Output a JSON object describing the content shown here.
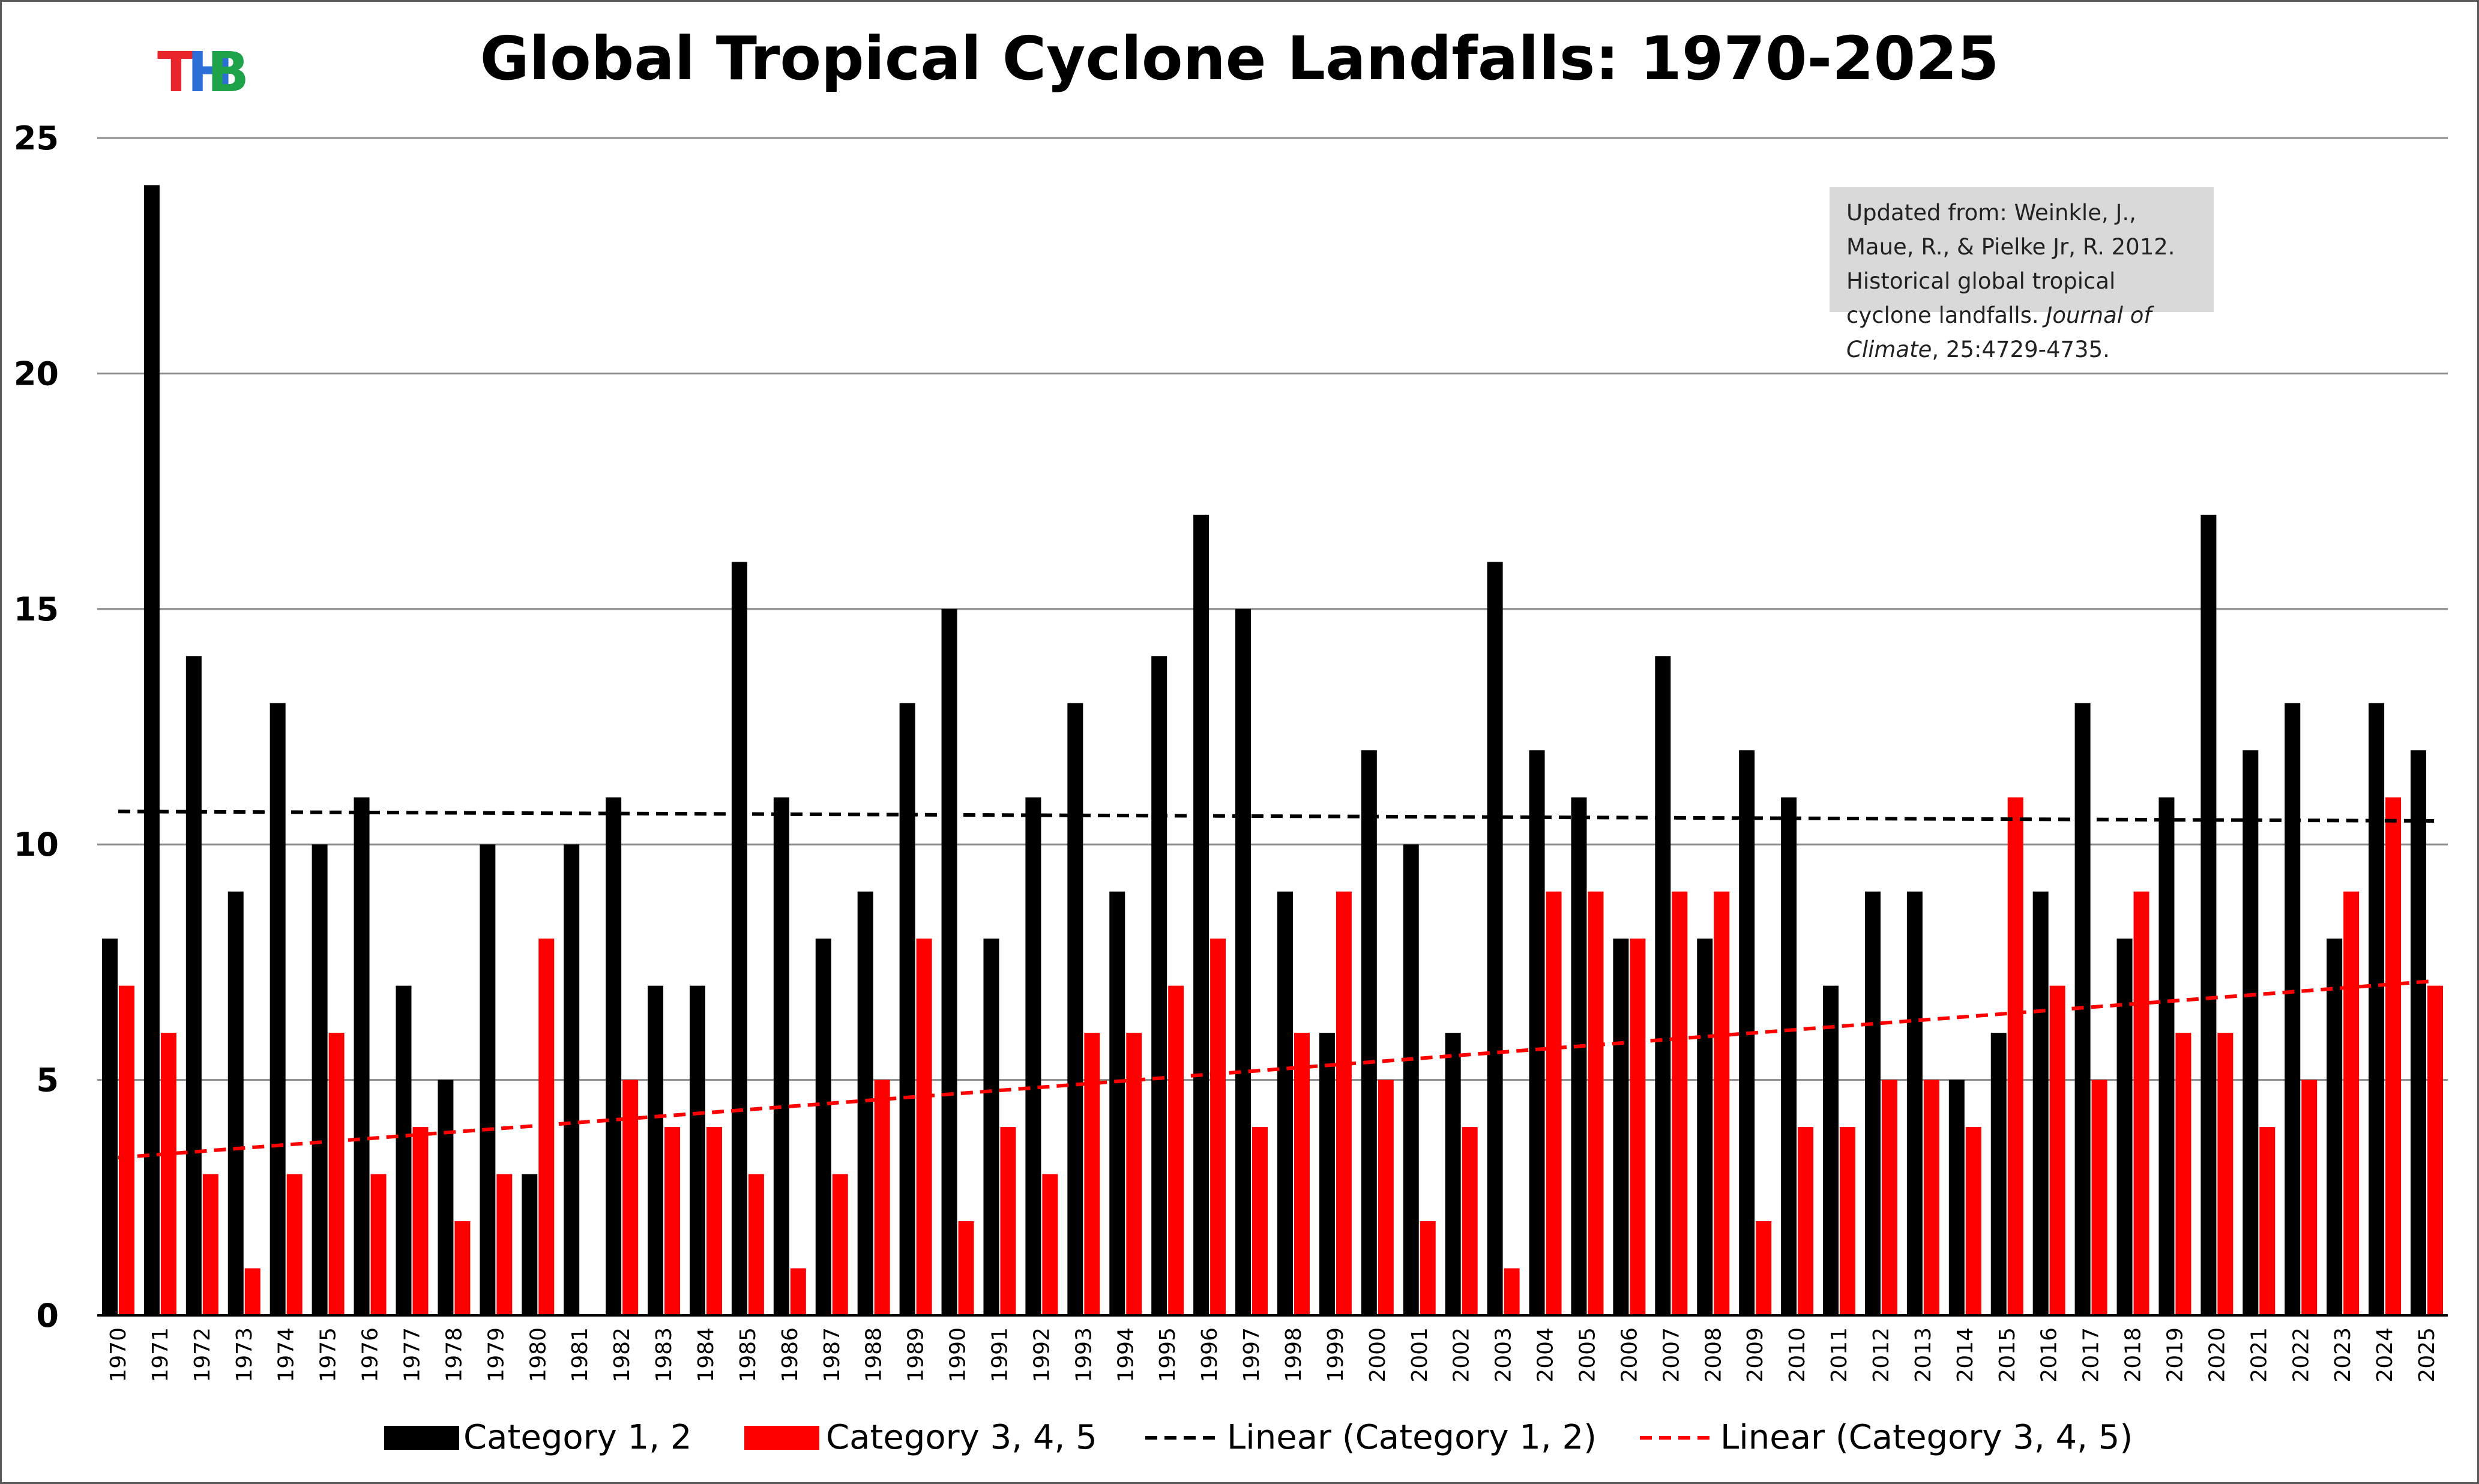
{
  "logo": {
    "letters": [
      "T",
      "H",
      "B"
    ],
    "colors": [
      "#e8262b",
      "#2b6fd6",
      "#1ea34a"
    ]
  },
  "note": {
    "prefix": "Updated from: Weinkle, J., Maue, R., & Pielke Jr, R. 2012. Historical global tropical cyclone landfalls. ",
    "journal": "Journal of Climate",
    "suffix": ", 25:4729-4735."
  },
  "colors": {
    "cat12": "#000000",
    "cat345": "#ff0000",
    "grid": "#8c8c8c"
  },
  "chart_data": {
    "type": "bar",
    "title": "Global Tropical Cyclone Landfalls: 1970-2025",
    "xlabel": "",
    "ylabel": "",
    "ylim": [
      0,
      25
    ],
    "yticks": [
      0,
      5,
      10,
      15,
      20,
      25
    ],
    "grid": true,
    "legend_position": "bottom",
    "categories": [
      "1970",
      "1971",
      "1972",
      "1973",
      "1974",
      "1975",
      "1976",
      "1977",
      "1978",
      "1979",
      "1980",
      "1981",
      "1982",
      "1983",
      "1984",
      "1985",
      "1986",
      "1987",
      "1988",
      "1989",
      "1990",
      "1991",
      "1992",
      "1993",
      "1994",
      "1995",
      "1996",
      "1997",
      "1998",
      "1999",
      "2000",
      "2001",
      "2002",
      "2003",
      "2004",
      "2005",
      "2006",
      "2007",
      "2008",
      "2009",
      "2010",
      "2011",
      "2012",
      "2013",
      "2014",
      "2015",
      "2016",
      "2017",
      "2018",
      "2019",
      "2020",
      "2021",
      "2022",
      "2023",
      "2024",
      "2025"
    ],
    "series": [
      {
        "name": "Category 1, 2",
        "color": "#000000",
        "values": [
          8,
          24,
          14,
          9,
          13,
          10,
          11,
          7,
          5,
          10,
          3,
          10,
          11,
          7,
          7,
          16,
          11,
          8,
          9,
          13,
          15,
          8,
          11,
          13,
          9,
          14,
          17,
          15,
          9,
          6,
          12,
          10,
          6,
          16,
          12,
          11,
          8,
          14,
          8,
          12,
          11,
          7,
          9,
          9,
          5,
          6,
          9,
          13,
          8,
          11,
          17,
          12,
          13,
          8,
          13,
          12
        ]
      },
      {
        "name": "Category 3, 4, 5",
        "color": "#ff0000",
        "values": [
          7,
          6,
          3,
          1,
          3,
          6,
          3,
          4,
          2,
          3,
          8,
          0,
          5,
          4,
          4,
          3,
          1,
          3,
          5,
          8,
          2,
          4,
          3,
          6,
          6,
          7,
          8,
          4,
          6,
          9,
          5,
          2,
          4,
          1,
          9,
          9,
          8,
          9,
          9,
          2,
          4,
          4,
          5,
          5,
          4,
          11,
          7,
          5,
          9,
          6,
          6,
          4,
          5,
          9,
          11,
          7
        ]
      }
    ],
    "trendlines": [
      {
        "name": "Linear (Category 1, 2)",
        "color": "#000000",
        "start": 10.7,
        "end": 10.5
      },
      {
        "name": "Linear (Category 3, 4, 5)",
        "color": "#ff0000",
        "start": 3.35,
        "end": 7.1
      }
    ]
  }
}
